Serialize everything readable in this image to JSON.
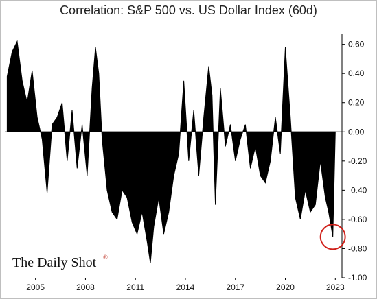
{
  "chart_data": {
    "type": "area",
    "title": "Correlation: S&P 500 vs. US Dollar Index (60d)",
    "xlabel": "",
    "ylabel": "",
    "xlim": [
      2003.2,
      2023.4
    ],
    "ylim": [
      -1.0,
      0.65
    ],
    "y_ticks": [
      0.6,
      0.4,
      0.2,
      0.0,
      -0.2,
      -0.4,
      -0.6,
      -0.8,
      -1.0
    ],
    "y_tick_labels": [
      "0.60",
      "0.40",
      "0.20",
      "0.00",
      "-0.20",
      "-0.40",
      "-0.60",
      "-0.80",
      "-1.00"
    ],
    "y_axis_position": "right",
    "x_ticks": [
      2005,
      2008,
      2011,
      2014,
      2017,
      2020,
      2023
    ],
    "x_tick_labels": [
      "2005",
      "2008",
      "2011",
      "2014",
      "2017",
      "2020",
      "2023"
    ],
    "grid": false,
    "fill_color": "#000000",
    "highlight_color": "#d0201a",
    "highlight_point": {
      "x": 2022.85,
      "y": -0.72
    },
    "series": [
      {
        "x": [
          2003.3,
          2003.6,
          2003.9,
          2004.2,
          2004.5,
          2004.8,
          2005.1,
          2005.4,
          2005.7,
          2006.0,
          2006.3,
          2006.6,
          2006.9,
          2007.2,
          2007.5,
          2007.8,
          2008.1,
          2008.4,
          2008.6,
          2008.8,
          2009.0,
          2009.3,
          2009.6,
          2009.9,
          2010.2,
          2010.5,
          2010.8,
          2011.1,
          2011.4,
          2011.7,
          2011.9,
          2012.1,
          2012.4,
          2012.7,
          2013.0,
          2013.3,
          2013.6,
          2013.9,
          2014.2,
          2014.5,
          2014.8,
          2015.1,
          2015.4,
          2015.6,
          2015.8,
          2016.1,
          2016.4,
          2016.7,
          2017.0,
          2017.3,
          2017.6,
          2017.9,
          2018.2,
          2018.5,
          2018.8,
          2019.1,
          2019.4,
          2019.7,
          2020.0,
          2020.3,
          2020.6,
          2020.9,
          2021.2,
          2021.5,
          2021.8,
          2022.1,
          2022.4,
          2022.6,
          2022.85,
          2023.0
        ],
        "y": [
          0.38,
          0.55,
          0.62,
          0.35,
          0.2,
          0.42,
          0.1,
          -0.05,
          -0.42,
          0.05,
          0.1,
          0.2,
          -0.2,
          0.15,
          -0.25,
          0.05,
          -0.3,
          0.3,
          0.58,
          0.4,
          -0.05,
          -0.4,
          -0.55,
          -0.6,
          -0.4,
          -0.45,
          -0.62,
          -0.7,
          -0.55,
          -0.75,
          -0.9,
          -0.65,
          -0.45,
          -0.7,
          -0.55,
          -0.3,
          -0.15,
          0.35,
          -0.2,
          0.15,
          -0.3,
          0.1,
          0.45,
          0.25,
          -0.5,
          0.3,
          -0.1,
          0.05,
          -0.2,
          -0.05,
          0.05,
          -0.25,
          -0.1,
          -0.3,
          -0.35,
          -0.2,
          0.1,
          -0.15,
          0.58,
          0.1,
          -0.45,
          -0.6,
          -0.4,
          -0.55,
          -0.5,
          -0.2,
          -0.45,
          -0.55,
          -0.72,
          0.0
        ]
      }
    ],
    "source_logo": "The Daily Shot",
    "source_logo_mark": "®"
  }
}
